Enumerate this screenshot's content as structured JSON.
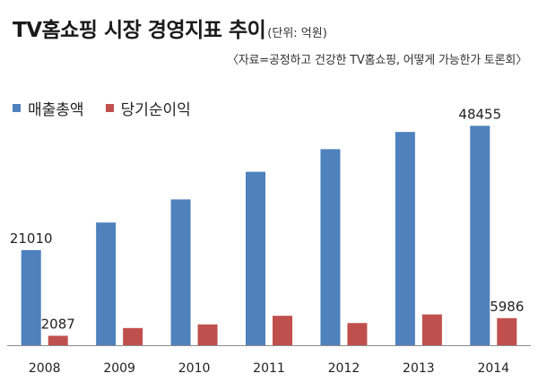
{
  "chart_data": {
    "type": "bar",
    "title": "TV홈쇼핑 시장 경영지표 추이",
    "unit_note": "(단위: 억원)",
    "source": "〈자료=공정하고 건강한 TV홈쇼핑, 어떻게 가능한가 토론회〉",
    "categories": [
      "2008",
      "2009",
      "2010",
      "2011",
      "2012",
      "2013",
      "2014"
    ],
    "series": [
      {
        "name": "매출총액",
        "color": "#4F81BD",
        "values": [
          21010,
          27100,
          32200,
          38300,
          43300,
          47100,
          48455
        ],
        "data_labels": [
          "21010",
          "",
          "",
          "",
          "",
          "",
          "48455"
        ]
      },
      {
        "name": "당기순이익",
        "color": "#C0504D",
        "values": [
          2087,
          3800,
          4600,
          6500,
          4900,
          6800,
          5986
        ],
        "data_labels": [
          "2087",
          "",
          "",
          "",
          "",
          "",
          "5986"
        ]
      }
    ],
    "ylim": [
      0,
      60000
    ],
    "grid": false,
    "legend": "top-left"
  }
}
